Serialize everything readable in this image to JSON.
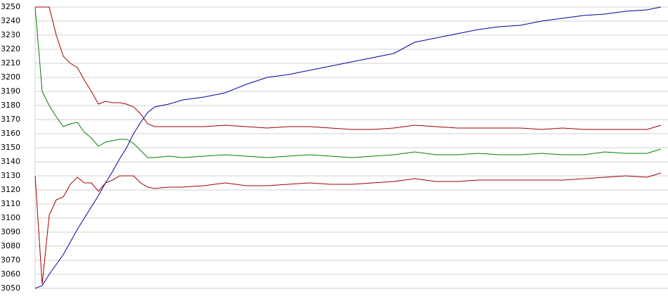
{
  "chart_data": {
    "type": "line",
    "x": [
      0,
      10,
      20,
      30,
      40,
      50,
      60,
      70,
      80,
      90,
      100,
      110,
      120,
      130,
      140,
      150,
      160,
      170,
      190,
      210,
      240,
      270,
      300,
      330,
      360,
      390,
      420,
      450,
      480,
      510,
      540,
      570,
      600,
      630,
      660,
      690,
      720,
      750,
      780,
      810,
      840,
      870,
      890
    ],
    "xlim": [
      0,
      890
    ],
    "ylim": [
      3050,
      3250
    ],
    "yticks": [
      3050,
      3060,
      3070,
      3080,
      3090,
      3100,
      3110,
      3120,
      3130,
      3140,
      3150,
      3160,
      3170,
      3180,
      3190,
      3200,
      3210,
      3220,
      3230,
      3240,
      3250
    ],
    "grid": true,
    "series": [
      {
        "color": "#0000a0",
        "values": [
          3050,
          3052,
          3060,
          3067,
          3074,
          3083,
          3092,
          3100,
          3108,
          3116,
          3125,
          3133,
          3142,
          3150,
          3160,
          3168,
          3175,
          3179,
          3181,
          3184,
          3186,
          3189,
          3195,
          3200,
          3202,
          3205,
          3208,
          3211,
          3214,
          3217,
          3225,
          3228,
          3231,
          3234,
          3236,
          3237,
          3240,
          3242,
          3244,
          3245,
          3247,
          3248,
          3250
        ]
      },
      {
        "color": "#a00000",
        "values": [
          3250,
          3250,
          3250,
          3230,
          3215,
          3210,
          3207,
          3198,
          3190,
          3181,
          3183,
          3182,
          3182,
          3181,
          3179,
          3174,
          3167,
          3165,
          3165,
          3165,
          3165,
          3166,
          3165,
          3164,
          3165,
          3165,
          3164,
          3163,
          3163,
          3164,
          3166,
          3165,
          3164,
          3164,
          3164,
          3164,
          3163,
          3164,
          3163,
          3163,
          3163,
          3163,
          3166
        ]
      },
      {
        "color": "#008000",
        "values": [
          3250,
          3190,
          3180,
          3172,
          3165,
          3167,
          3168,
          3161,
          3157,
          3151,
          3154,
          3155,
          3156,
          3156,
          3153,
          3148,
          3143,
          3143,
          3144,
          3143,
          3144,
          3145,
          3144,
          3143,
          3144,
          3145,
          3144,
          3143,
          3144,
          3145,
          3147,
          3145,
          3145,
          3146,
          3145,
          3145,
          3146,
          3145,
          3145,
          3147,
          3146,
          3146,
          3149
        ]
      },
      {
        "color": "#a00000",
        "values": [
          3130,
          3053,
          3102,
          3113,
          3115,
          3124,
          3129,
          3125,
          3125,
          3119,
          3125,
          3127,
          3130,
          3130,
          3130,
          3125,
          3122,
          3121,
          3122,
          3122,
          3123,
          3125,
          3123,
          3123,
          3124,
          3125,
          3124,
          3124,
          3125,
          3126,
          3128,
          3126,
          3126,
          3127,
          3127,
          3127,
          3127,
          3127,
          3128,
          3129,
          3130,
          3129,
          3132
        ]
      }
    ]
  }
}
